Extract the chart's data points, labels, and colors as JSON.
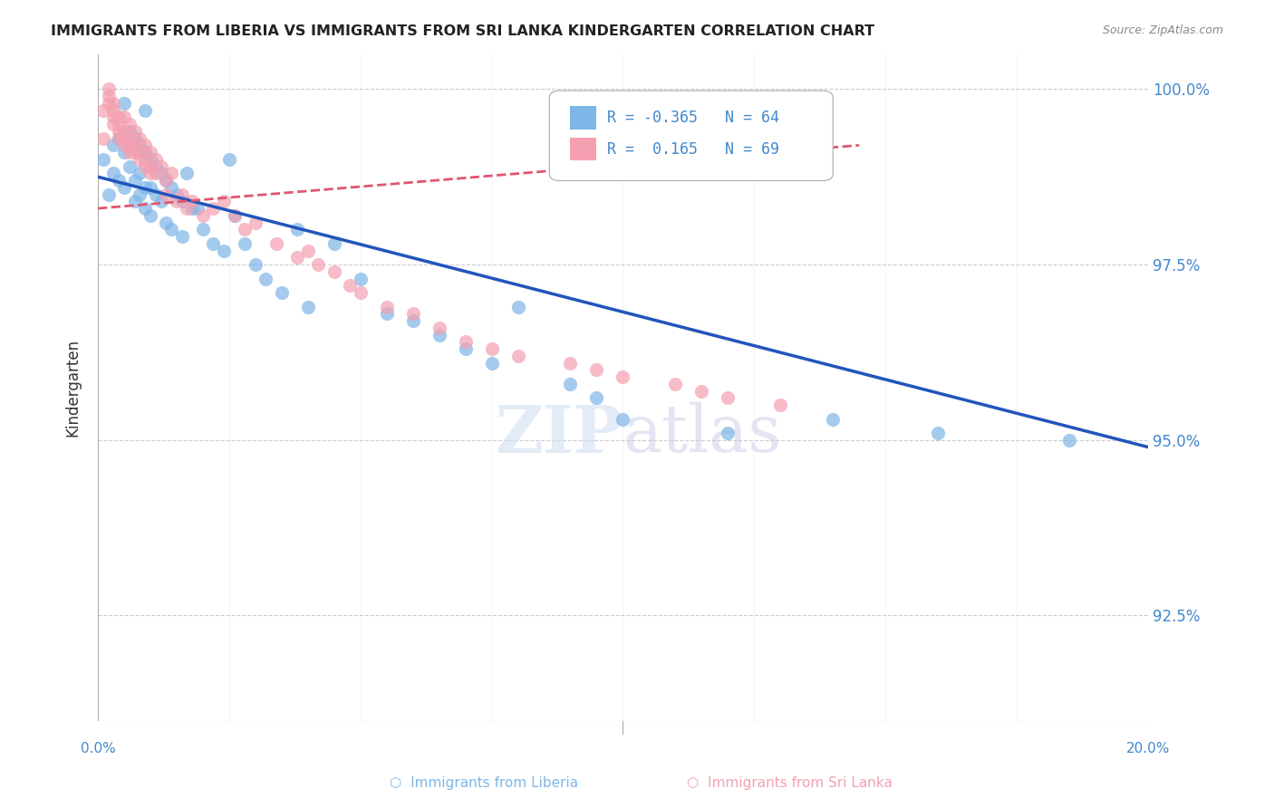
{
  "title": "IMMIGRANTS FROM LIBERIA VS IMMIGRANTS FROM SRI LANKA KINDERGARTEN CORRELATION CHART",
  "source": "Source: ZipAtlas.com",
  "xlabel_bottom_left": "0.0%",
  "xlabel_bottom_right": "20.0%",
  "ylabel": "Kindergarten",
  "ytick_labels": [
    "92.5%",
    "95.0%",
    "97.5%",
    "100.0%"
  ],
  "ytick_values": [
    0.925,
    0.95,
    0.975,
    1.0
  ],
  "xlim": [
    0.0,
    0.2
  ],
  "ylim": [
    0.91,
    1.005
  ],
  "legend_blue_R": "-0.365",
  "legend_blue_N": "64",
  "legend_pink_R": "0.165",
  "legend_pink_N": "69",
  "blue_color": "#7EB6E8",
  "pink_color": "#F4A0B0",
  "blue_line_color": "#2255BB",
  "pink_line_color": "#E05570",
  "watermark": "ZIPatlas",
  "scatter_blue_x": [
    0.001,
    0.002,
    0.003,
    0.003,
    0.004,
    0.004,
    0.005,
    0.005,
    0.005,
    0.006,
    0.006,
    0.007,
    0.007,
    0.007,
    0.008,
    0.008,
    0.008,
    0.009,
    0.009,
    0.009,
    0.009,
    0.01,
    0.01,
    0.01,
    0.011,
    0.011,
    0.012,
    0.012,
    0.013,
    0.013,
    0.014,
    0.014,
    0.015,
    0.016,
    0.016,
    0.017,
    0.018,
    0.019,
    0.02,
    0.022,
    0.024,
    0.025,
    0.026,
    0.028,
    0.03,
    0.032,
    0.035,
    0.038,
    0.04,
    0.045,
    0.05,
    0.055,
    0.06,
    0.065,
    0.07,
    0.075,
    0.08,
    0.09,
    0.095,
    0.1,
    0.12,
    0.14,
    0.16,
    0.185
  ],
  "scatter_blue_y": [
    0.99,
    0.985,
    0.992,
    0.988,
    0.993,
    0.987,
    0.991,
    0.986,
    0.998,
    0.994,
    0.989,
    0.993,
    0.987,
    0.984,
    0.992,
    0.988,
    0.985,
    0.991,
    0.986,
    0.983,
    0.997,
    0.99,
    0.986,
    0.982,
    0.989,
    0.985,
    0.988,
    0.984,
    0.987,
    0.981,
    0.986,
    0.98,
    0.985,
    0.984,
    0.979,
    0.988,
    0.983,
    0.983,
    0.98,
    0.978,
    0.977,
    0.99,
    0.982,
    0.978,
    0.975,
    0.973,
    0.971,
    0.98,
    0.969,
    0.978,
    0.973,
    0.968,
    0.967,
    0.965,
    0.963,
    0.961,
    0.969,
    0.958,
    0.956,
    0.953,
    0.951,
    0.953,
    0.951,
    0.95
  ],
  "scatter_pink_x": [
    0.001,
    0.001,
    0.002,
    0.002,
    0.002,
    0.003,
    0.003,
    0.003,
    0.003,
    0.004,
    0.004,
    0.004,
    0.004,
    0.005,
    0.005,
    0.005,
    0.005,
    0.006,
    0.006,
    0.006,
    0.006,
    0.007,
    0.007,
    0.007,
    0.008,
    0.008,
    0.008,
    0.009,
    0.009,
    0.009,
    0.01,
    0.01,
    0.01,
    0.011,
    0.011,
    0.012,
    0.013,
    0.013,
    0.014,
    0.015,
    0.016,
    0.017,
    0.018,
    0.02,
    0.022,
    0.024,
    0.026,
    0.028,
    0.03,
    0.034,
    0.038,
    0.04,
    0.042,
    0.045,
    0.048,
    0.05,
    0.055,
    0.06,
    0.065,
    0.07,
    0.075,
    0.08,
    0.09,
    0.095,
    0.1,
    0.11,
    0.115,
    0.12,
    0.13
  ],
  "scatter_pink_y": [
    0.993,
    0.997,
    0.998,
    0.999,
    1.0,
    0.998,
    0.997,
    0.996,
    0.995,
    0.996,
    0.995,
    0.994,
    0.993,
    0.996,
    0.994,
    0.993,
    0.992,
    0.995,
    0.993,
    0.992,
    0.991,
    0.994,
    0.992,
    0.991,
    0.993,
    0.991,
    0.99,
    0.992,
    0.99,
    0.989,
    0.991,
    0.989,
    0.988,
    0.99,
    0.988,
    0.989,
    0.987,
    0.985,
    0.988,
    0.984,
    0.985,
    0.983,
    0.984,
    0.982,
    0.983,
    0.984,
    0.982,
    0.98,
    0.981,
    0.978,
    0.976,
    0.977,
    0.975,
    0.974,
    0.972,
    0.971,
    0.969,
    0.968,
    0.966,
    0.964,
    0.963,
    0.962,
    0.961,
    0.96,
    0.959,
    0.958,
    0.957,
    0.956,
    0.955
  ],
  "blue_trendline_x": [
    0.0,
    0.2
  ],
  "blue_trendline_y": [
    0.9875,
    0.949
  ],
  "pink_trendline_x": [
    0.0,
    0.145
  ],
  "pink_trendline_y": [
    0.983,
    0.992
  ]
}
